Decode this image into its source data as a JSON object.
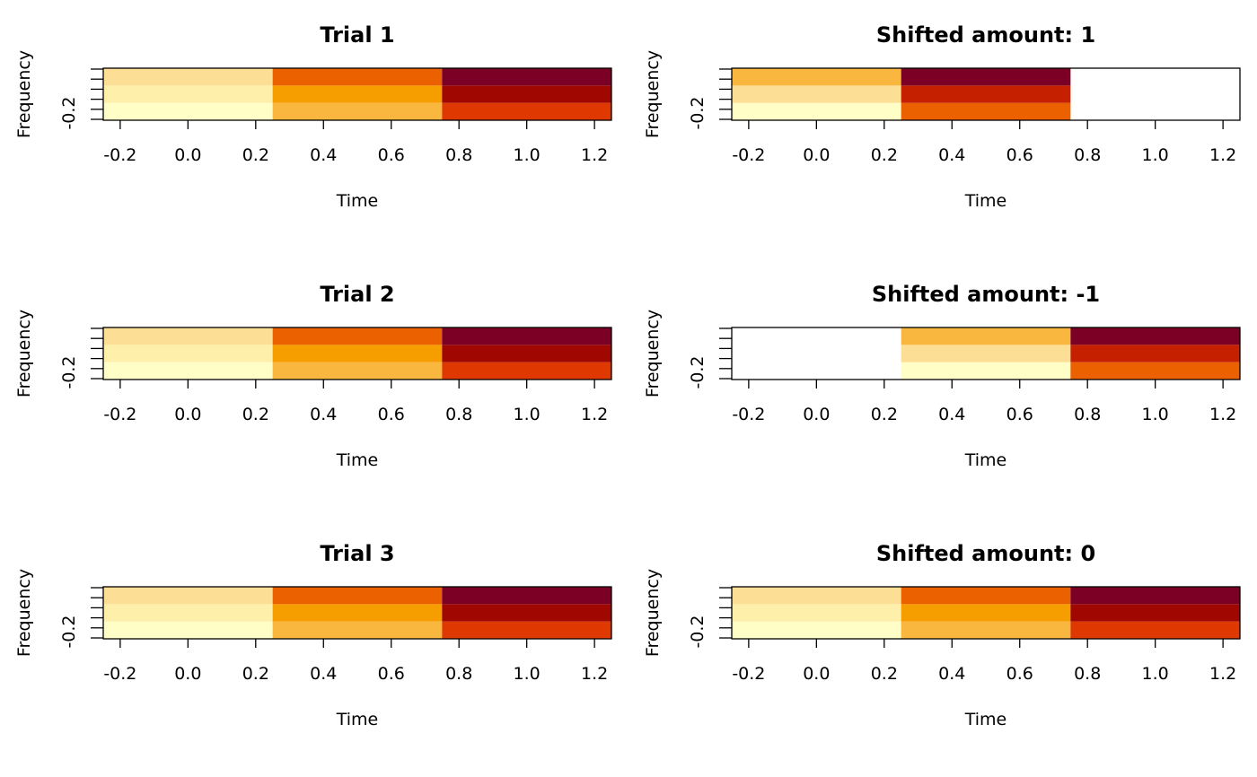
{
  "colors": {
    "palette": [
      "#FFFEC6",
      "#FEF0AA",
      "#FCDF95",
      "#F9B73F",
      "#F69D00",
      "#EB6100",
      "#DF3800",
      "#C52100",
      "#A00700",
      "#7C0026"
    ],
    "missing": "#FFFFFF",
    "frame": "#000000"
  },
  "chart_data": [
    {
      "type": "heatmap",
      "title": "Trial 1",
      "xlabel": "Time",
      "ylabel": "Frequency",
      "x_ticks": [
        "-0.2",
        "0.0",
        "0.2",
        "0.4",
        "0.6",
        "0.8",
        "1.0",
        "1.2"
      ],
      "y_tick_label": "-0.2",
      "xlim": [
        -0.25,
        1.25
      ],
      "x_centers": [
        0,
        0.5,
        1
      ],
      "n_freq_rows": 3,
      "color_index": [
        [
          0,
          3,
          6
        ],
        [
          1,
          4,
          8
        ],
        [
          2,
          5,
          9
        ]
      ]
    },
    {
      "type": "heatmap",
      "title": "Shifted amount: 1",
      "xlabel": "Time",
      "ylabel": "Frequency",
      "x_ticks": [
        "-0.2",
        "0.0",
        "0.2",
        "0.4",
        "0.6",
        "0.8",
        "1.0",
        "1.2"
      ],
      "y_tick_label": "-0.2",
      "xlim": [
        -0.25,
        1.25
      ],
      "x_centers": [
        0,
        0.5,
        1
      ],
      "n_freq_rows": 3,
      "color_index": [
        [
          0,
          5,
          null
        ],
        [
          2,
          7,
          null
        ],
        [
          3,
          9,
          null
        ]
      ]
    },
    {
      "type": "heatmap",
      "title": "Trial 2",
      "xlabel": "Time",
      "ylabel": "Frequency",
      "x_ticks": [
        "-0.2",
        "0.0",
        "0.2",
        "0.4",
        "0.6",
        "0.8",
        "1.0",
        "1.2"
      ],
      "y_tick_label": "-0.2",
      "xlim": [
        -0.25,
        1.25
      ],
      "x_centers": [
        0,
        0.5,
        1
      ],
      "n_freq_rows": 3,
      "color_index": [
        [
          0,
          3,
          6
        ],
        [
          1,
          4,
          8
        ],
        [
          2,
          5,
          9
        ]
      ]
    },
    {
      "type": "heatmap",
      "title": "Shifted amount: -1",
      "xlabel": "Time",
      "ylabel": "Frequency",
      "x_ticks": [
        "-0.2",
        "0.0",
        "0.2",
        "0.4",
        "0.6",
        "0.8",
        "1.0",
        "1.2"
      ],
      "y_tick_label": "-0.2",
      "xlim": [
        -0.25,
        1.25
      ],
      "x_centers": [
        0,
        0.5,
        1
      ],
      "n_freq_rows": 3,
      "color_index": [
        [
          null,
          0,
          5
        ],
        [
          null,
          2,
          7
        ],
        [
          null,
          3,
          9
        ]
      ]
    },
    {
      "type": "heatmap",
      "title": "Trial 3",
      "xlabel": "Time",
      "ylabel": "Frequency",
      "x_ticks": [
        "-0.2",
        "0.0",
        "0.2",
        "0.4",
        "0.6",
        "0.8",
        "1.0",
        "1.2"
      ],
      "y_tick_label": "-0.2",
      "xlim": [
        -0.25,
        1.25
      ],
      "x_centers": [
        0,
        0.5,
        1
      ],
      "n_freq_rows": 3,
      "color_index": [
        [
          0,
          3,
          6
        ],
        [
          1,
          4,
          8
        ],
        [
          2,
          5,
          9
        ]
      ]
    },
    {
      "type": "heatmap",
      "title": "Shifted amount: 0",
      "xlabel": "Time",
      "ylabel": "Frequency",
      "x_ticks": [
        "-0.2",
        "0.0",
        "0.2",
        "0.4",
        "0.6",
        "0.8",
        "1.0",
        "1.2"
      ],
      "y_tick_label": "-0.2",
      "xlim": [
        -0.25,
        1.25
      ],
      "x_centers": [
        0,
        0.5,
        1
      ],
      "n_freq_rows": 3,
      "color_index": [
        [
          0,
          3,
          6
        ],
        [
          1,
          4,
          8
        ],
        [
          2,
          5,
          9
        ]
      ]
    }
  ]
}
